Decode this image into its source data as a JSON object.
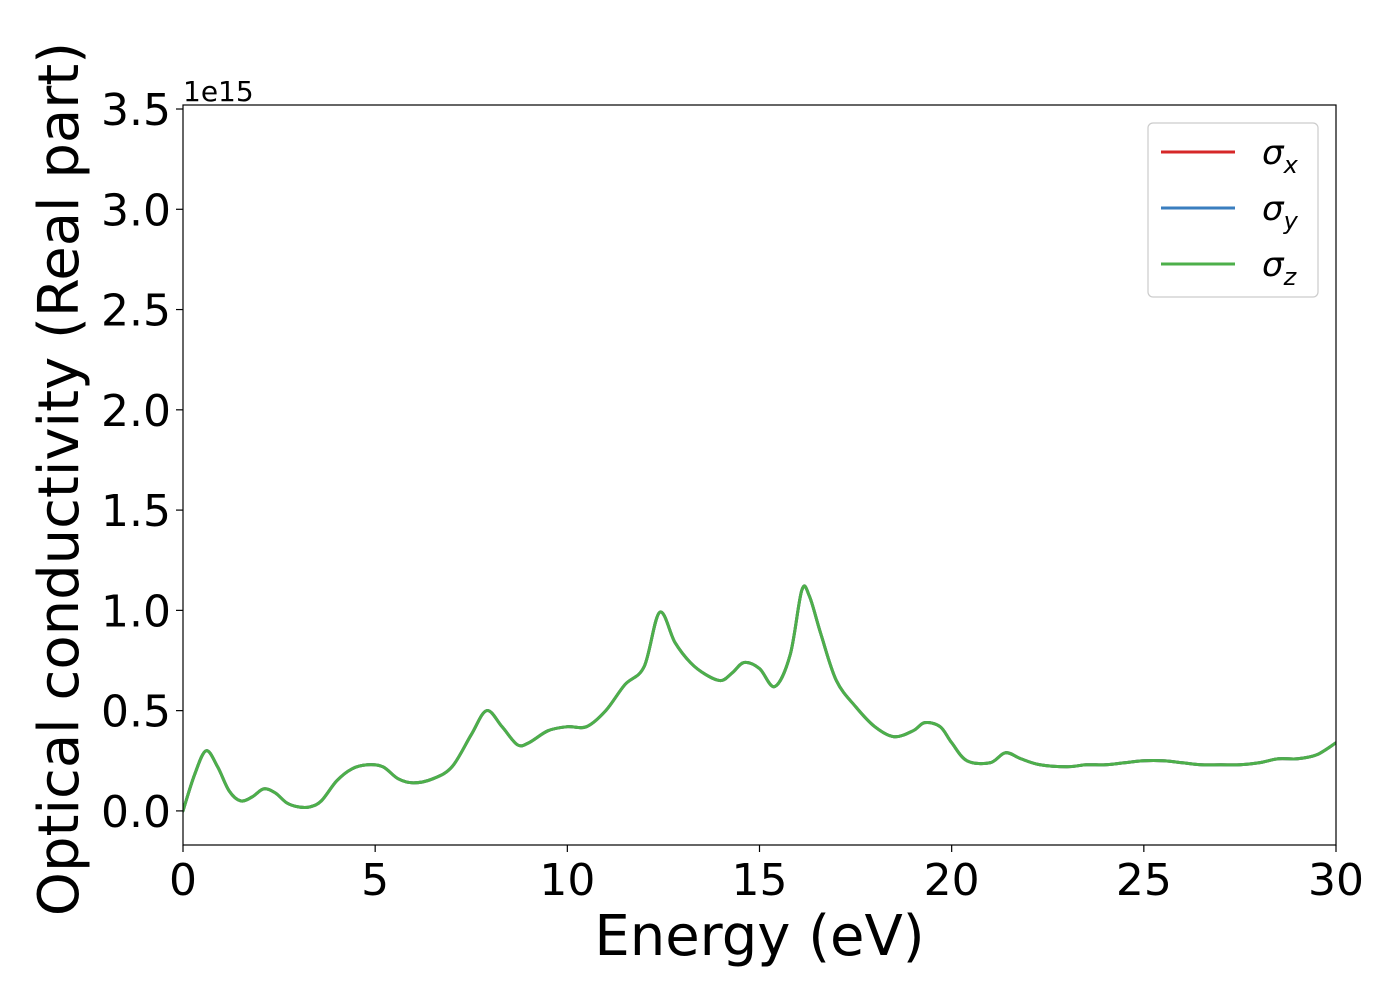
{
  "chart_data": {
    "type": "line",
    "xlabel": "Energy (eV)",
    "ylabel": "Optical conductivity (Real part)",
    "y_offset_label": "1e15",
    "xlim": [
      0,
      30
    ],
    "ylim": [
      -0.17,
      3.52
    ],
    "x_ticks": [
      0,
      5,
      10,
      15,
      20,
      25,
      30
    ],
    "x_tick_labels": [
      "0",
      "5",
      "10",
      "15",
      "20",
      "25",
      "30"
    ],
    "y_ticks": [
      0.0,
      0.5,
      1.0,
      1.5,
      2.0,
      2.5,
      3.0,
      3.5
    ],
    "y_tick_labels": [
      "0.0",
      "0.5",
      "1.0",
      "1.5",
      "2.0",
      "2.5",
      "3.0",
      "3.5"
    ],
    "grid": false,
    "legend_position": "top-right",
    "series": [
      {
        "name": "σ_x",
        "legend_symbol": "σ",
        "legend_subscript": "x",
        "color": "#d62728",
        "x": [
          0,
          0.3,
          0.6,
          0.9,
          1.2,
          1.5,
          1.8,
          2.1,
          2.4,
          2.7,
          3.0,
          3.3,
          3.6,
          4.0,
          4.4,
          4.8,
          5.2,
          5.6,
          6.0,
          6.5,
          7.0,
          7.5,
          7.9,
          8.3,
          8.7,
          9.0,
          9.5,
          10.0,
          10.5,
          11.0,
          11.5,
          12.0,
          12.4,
          12.8,
          13.2,
          13.6,
          14.0,
          14.3,
          14.6,
          15.0,
          15.4,
          15.8,
          16.1,
          16.3,
          16.6,
          17.0,
          17.5,
          18.0,
          18.5,
          19.0,
          19.3,
          19.7,
          20.0,
          20.4,
          21.0,
          21.4,
          21.8,
          22.3,
          23.0,
          23.5,
          24.0,
          24.5,
          25.0,
          25.5,
          26.0,
          26.5,
          27.0,
          27.5,
          28.0,
          28.5,
          29.0,
          29.5,
          30.0
        ],
        "values": [
          0.0,
          0.18,
          0.3,
          0.22,
          0.1,
          0.05,
          0.07,
          0.11,
          0.09,
          0.04,
          0.02,
          0.02,
          0.05,
          0.15,
          0.21,
          0.23,
          0.22,
          0.16,
          0.14,
          0.16,
          0.22,
          0.38,
          0.5,
          0.42,
          0.33,
          0.34,
          0.4,
          0.42,
          0.42,
          0.5,
          0.63,
          0.72,
          0.99,
          0.84,
          0.74,
          0.68,
          0.65,
          0.69,
          0.74,
          0.71,
          0.62,
          0.78,
          1.1,
          1.07,
          0.88,
          0.65,
          0.52,
          0.42,
          0.37,
          0.4,
          0.44,
          0.42,
          0.34,
          0.25,
          0.24,
          0.29,
          0.26,
          0.23,
          0.22,
          0.23,
          0.23,
          0.24,
          0.25,
          0.25,
          0.24,
          0.23,
          0.23,
          0.23,
          0.24,
          0.26,
          0.26,
          0.28,
          0.34
        ]
      },
      {
        "name": "σ_y",
        "legend_symbol": "σ",
        "legend_subscript": "y",
        "color": "#3a7ebf",
        "x": [
          0,
          0.3,
          0.6,
          0.9,
          1.2,
          1.5,
          1.8,
          2.1,
          2.4,
          2.7,
          3.0,
          3.3,
          3.6,
          4.0,
          4.4,
          4.8,
          5.2,
          5.6,
          6.0,
          6.5,
          7.0,
          7.5,
          7.9,
          8.3,
          8.7,
          9.0,
          9.5,
          10.0,
          10.5,
          11.0,
          11.5,
          12.0,
          12.4,
          12.8,
          13.2,
          13.6,
          14.0,
          14.3,
          14.6,
          15.0,
          15.4,
          15.8,
          16.1,
          16.3,
          16.6,
          17.0,
          17.5,
          18.0,
          18.5,
          19.0,
          19.3,
          19.7,
          20.0,
          20.4,
          21.0,
          21.4,
          21.8,
          22.3,
          23.0,
          23.5,
          24.0,
          24.5,
          25.0,
          25.5,
          26.0,
          26.5,
          27.0,
          27.5,
          28.0,
          28.5,
          29.0,
          29.5,
          30.0
        ],
        "values": [
          0.0,
          0.18,
          0.3,
          0.22,
          0.1,
          0.05,
          0.07,
          0.11,
          0.09,
          0.04,
          0.02,
          0.02,
          0.05,
          0.15,
          0.21,
          0.23,
          0.22,
          0.16,
          0.14,
          0.16,
          0.22,
          0.38,
          0.5,
          0.42,
          0.33,
          0.34,
          0.4,
          0.42,
          0.42,
          0.5,
          0.63,
          0.72,
          0.99,
          0.84,
          0.74,
          0.68,
          0.65,
          0.69,
          0.74,
          0.71,
          0.62,
          0.78,
          1.1,
          1.07,
          0.88,
          0.65,
          0.52,
          0.42,
          0.37,
          0.4,
          0.44,
          0.42,
          0.34,
          0.25,
          0.24,
          0.29,
          0.26,
          0.23,
          0.22,
          0.23,
          0.23,
          0.24,
          0.25,
          0.25,
          0.24,
          0.23,
          0.23,
          0.23,
          0.24,
          0.26,
          0.26,
          0.28,
          0.34
        ]
      },
      {
        "name": "σ_z",
        "legend_symbol": "σ",
        "legend_subscript": "z",
        "color": "#4daf4a",
        "x": [
          0,
          0.3,
          0.6,
          0.9,
          1.2,
          1.5,
          1.8,
          2.1,
          2.4,
          2.7,
          3.0,
          3.3,
          3.6,
          4.0,
          4.4,
          4.8,
          5.2,
          5.6,
          6.0,
          6.5,
          7.0,
          7.5,
          7.9,
          8.3,
          8.7,
          9.0,
          9.5,
          10.0,
          10.5,
          11.0,
          11.5,
          12.0,
          12.4,
          12.8,
          13.2,
          13.6,
          14.0,
          14.3,
          14.6,
          15.0,
          15.4,
          15.8,
          16.1,
          16.3,
          16.6,
          17.0,
          17.5,
          18.0,
          18.5,
          19.0,
          19.3,
          19.7,
          20.0,
          20.4,
          21.0,
          21.4,
          21.8,
          22.3,
          23.0,
          23.5,
          24.0,
          24.5,
          25.0,
          25.5,
          26.0,
          26.5,
          27.0,
          27.5,
          28.0,
          28.5,
          29.0,
          29.5,
          30.0
        ],
        "values": [
          0.0,
          0.18,
          0.3,
          0.22,
          0.1,
          0.05,
          0.07,
          0.11,
          0.09,
          0.04,
          0.02,
          0.02,
          0.05,
          0.15,
          0.21,
          0.23,
          0.22,
          0.16,
          0.14,
          0.16,
          0.22,
          0.38,
          0.5,
          0.42,
          0.33,
          0.34,
          0.4,
          0.42,
          0.42,
          0.5,
          0.63,
          0.72,
          0.99,
          0.84,
          0.74,
          0.68,
          0.65,
          0.69,
          0.74,
          0.71,
          0.62,
          0.78,
          1.1,
          1.07,
          0.88,
          0.65,
          0.52,
          0.42,
          0.37,
          0.4,
          0.44,
          0.42,
          0.34,
          0.25,
          0.24,
          0.29,
          0.26,
          0.23,
          0.22,
          0.23,
          0.23,
          0.24,
          0.25,
          0.25,
          0.24,
          0.23,
          0.23,
          0.23,
          0.24,
          0.26,
          0.26,
          0.28,
          0.34
        ]
      }
    ]
  }
}
